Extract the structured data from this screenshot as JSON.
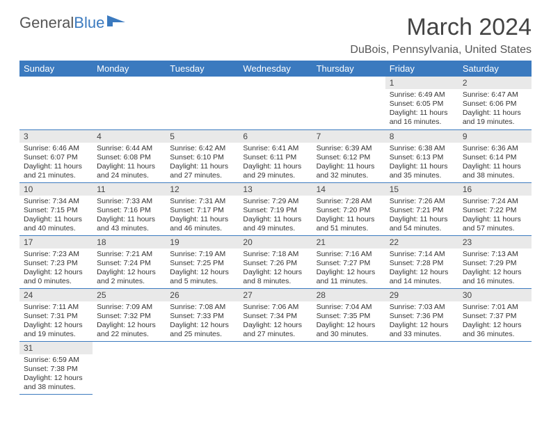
{
  "logo": {
    "text1": "General",
    "text2": "Blue"
  },
  "title": "March 2024",
  "subtitle": "DuBois, Pennsylvania, United States",
  "colors": {
    "header_bg": "#3b7abf",
    "header_text": "#ffffff",
    "daynum_bg": "#e9e9e9",
    "rule": "#3b7abf",
    "body_text": "#333333"
  },
  "daysOfWeek": [
    "Sunday",
    "Monday",
    "Tuesday",
    "Wednesday",
    "Thursday",
    "Friday",
    "Saturday"
  ],
  "layout": {
    "firstDayCol": 5,
    "daysInMonth": 31
  },
  "days": {
    "1": {
      "sunrise": "6:49 AM",
      "sunset": "6:05 PM",
      "daylight": "11 hours and 16 minutes."
    },
    "2": {
      "sunrise": "6:47 AM",
      "sunset": "6:06 PM",
      "daylight": "11 hours and 19 minutes."
    },
    "3": {
      "sunrise": "6:46 AM",
      "sunset": "6:07 PM",
      "daylight": "11 hours and 21 minutes."
    },
    "4": {
      "sunrise": "6:44 AM",
      "sunset": "6:08 PM",
      "daylight": "11 hours and 24 minutes."
    },
    "5": {
      "sunrise": "6:42 AM",
      "sunset": "6:10 PM",
      "daylight": "11 hours and 27 minutes."
    },
    "6": {
      "sunrise": "6:41 AM",
      "sunset": "6:11 PM",
      "daylight": "11 hours and 29 minutes."
    },
    "7": {
      "sunrise": "6:39 AM",
      "sunset": "6:12 PM",
      "daylight": "11 hours and 32 minutes."
    },
    "8": {
      "sunrise": "6:38 AM",
      "sunset": "6:13 PM",
      "daylight": "11 hours and 35 minutes."
    },
    "9": {
      "sunrise": "6:36 AM",
      "sunset": "6:14 PM",
      "daylight": "11 hours and 38 minutes."
    },
    "10": {
      "sunrise": "7:34 AM",
      "sunset": "7:15 PM",
      "daylight": "11 hours and 40 minutes."
    },
    "11": {
      "sunrise": "7:33 AM",
      "sunset": "7:16 PM",
      "daylight": "11 hours and 43 minutes."
    },
    "12": {
      "sunrise": "7:31 AM",
      "sunset": "7:17 PM",
      "daylight": "11 hours and 46 minutes."
    },
    "13": {
      "sunrise": "7:29 AM",
      "sunset": "7:19 PM",
      "daylight": "11 hours and 49 minutes."
    },
    "14": {
      "sunrise": "7:28 AM",
      "sunset": "7:20 PM",
      "daylight": "11 hours and 51 minutes."
    },
    "15": {
      "sunrise": "7:26 AM",
      "sunset": "7:21 PM",
      "daylight": "11 hours and 54 minutes."
    },
    "16": {
      "sunrise": "7:24 AM",
      "sunset": "7:22 PM",
      "daylight": "11 hours and 57 minutes."
    },
    "17": {
      "sunrise": "7:23 AM",
      "sunset": "7:23 PM",
      "daylight": "12 hours and 0 minutes."
    },
    "18": {
      "sunrise": "7:21 AM",
      "sunset": "7:24 PM",
      "daylight": "12 hours and 2 minutes."
    },
    "19": {
      "sunrise": "7:19 AM",
      "sunset": "7:25 PM",
      "daylight": "12 hours and 5 minutes."
    },
    "20": {
      "sunrise": "7:18 AM",
      "sunset": "7:26 PM",
      "daylight": "12 hours and 8 minutes."
    },
    "21": {
      "sunrise": "7:16 AM",
      "sunset": "7:27 PM",
      "daylight": "12 hours and 11 minutes."
    },
    "22": {
      "sunrise": "7:14 AM",
      "sunset": "7:28 PM",
      "daylight": "12 hours and 14 minutes."
    },
    "23": {
      "sunrise": "7:13 AM",
      "sunset": "7:29 PM",
      "daylight": "12 hours and 16 minutes."
    },
    "24": {
      "sunrise": "7:11 AM",
      "sunset": "7:31 PM",
      "daylight": "12 hours and 19 minutes."
    },
    "25": {
      "sunrise": "7:09 AM",
      "sunset": "7:32 PM",
      "daylight": "12 hours and 22 minutes."
    },
    "26": {
      "sunrise": "7:08 AM",
      "sunset": "7:33 PM",
      "daylight": "12 hours and 25 minutes."
    },
    "27": {
      "sunrise": "7:06 AM",
      "sunset": "7:34 PM",
      "daylight": "12 hours and 27 minutes."
    },
    "28": {
      "sunrise": "7:04 AM",
      "sunset": "7:35 PM",
      "daylight": "12 hours and 30 minutes."
    },
    "29": {
      "sunrise": "7:03 AM",
      "sunset": "7:36 PM",
      "daylight": "12 hours and 33 minutes."
    },
    "30": {
      "sunrise": "7:01 AM",
      "sunset": "7:37 PM",
      "daylight": "12 hours and 36 minutes."
    },
    "31": {
      "sunrise": "6:59 AM",
      "sunset": "7:38 PM",
      "daylight": "12 hours and 38 minutes."
    }
  },
  "labels": {
    "sunrise": "Sunrise: ",
    "sunset": "Sunset: ",
    "daylight": "Daylight: "
  }
}
